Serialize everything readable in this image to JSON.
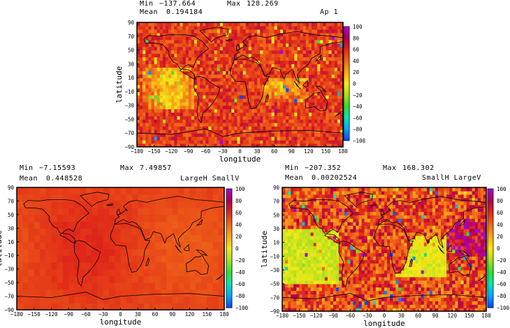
{
  "chart_data": [
    {
      "type": "heatmap",
      "title": "Ap 1",
      "stats": {
        "min_label": "Min",
        "min": "−137.664",
        "max_label": "Max",
        "max": "128.269",
        "mean_label": "Mean",
        "mean": "0.194184"
      },
      "xlabel": "longitude",
      "ylabel": "latitude",
      "xlim": [
        -180,
        180
      ],
      "ylim": [
        -90,
        90
      ],
      "xticks": [
        "−180",
        "−150",
        "−120",
        "−90",
        "−60",
        "−30",
        "0",
        "30",
        "60",
        "90",
        "120",
        "150",
        "180"
      ],
      "yticks": [
        "90",
        "70",
        "50",
        "30",
        "10",
        "−10",
        "−30",
        "−50",
        "−70",
        "−90"
      ],
      "colorbar": {
        "range": [
          -100,
          100
        ],
        "ticks": [
          "100",
          "80",
          "60",
          "40",
          "20",
          "0",
          "−20",
          "−40",
          "−60",
          "−80",
          "−100"
        ]
      }
    },
    {
      "type": "heatmap",
      "title": "LargeH SmallV",
      "stats": {
        "min_label": "Min",
        "min": "−7.15593",
        "max_label": "Max",
        "max": "7.49857",
        "mean_label": "Mean",
        "mean": "0.448528"
      },
      "xlabel": "longitude",
      "ylabel": "latitude",
      "xlim": [
        -180,
        180
      ],
      "ylim": [
        -90,
        90
      ],
      "xticks": [
        "−180",
        "−150",
        "−120",
        "−90",
        "−60",
        "−30",
        "0",
        "30",
        "60",
        "90",
        "120",
        "150",
        "180"
      ],
      "yticks": [
        "90",
        "70",
        "50",
        "30",
        "10",
        "−10",
        "−30",
        "−50",
        "−70",
        "−90"
      ],
      "colorbar": {
        "range": [
          -100,
          100
        ],
        "ticks": [
          "100",
          "80",
          "60",
          "40",
          "20",
          "0",
          "−20",
          "−40",
          "−60",
          "−80",
          "−100"
        ]
      }
    },
    {
      "type": "heatmap",
      "title": "SmallH LargeV",
      "stats": {
        "min_label": "Min",
        "min": "−207.352",
        "max_label": "Max",
        "max": "168.302",
        "mean_label": "Mean",
        "mean": "0.00202524"
      },
      "xlabel": "longitude",
      "ylabel": "latitude",
      "xlim": [
        -180,
        180
      ],
      "ylim": [
        -90,
        90
      ],
      "xticks": [
        "−180",
        "−150",
        "−120",
        "−90",
        "−60",
        "−30",
        "0",
        "30",
        "60",
        "90",
        "120",
        "150",
        "180"
      ],
      "yticks": [
        "90",
        "70",
        "50",
        "30",
        "10",
        "−10",
        "−30",
        "−50",
        "−70",
        "−90"
      ],
      "colorbar": {
        "range": [
          -100,
          100
        ],
        "ticks": [
          "100",
          "80",
          "60",
          "40",
          "20",
          "0",
          "−20",
          "−40",
          "−60",
          "−80",
          "−100"
        ]
      }
    }
  ],
  "colors": {
    "frame": "#000000",
    "base_field": "#f07818"
  }
}
